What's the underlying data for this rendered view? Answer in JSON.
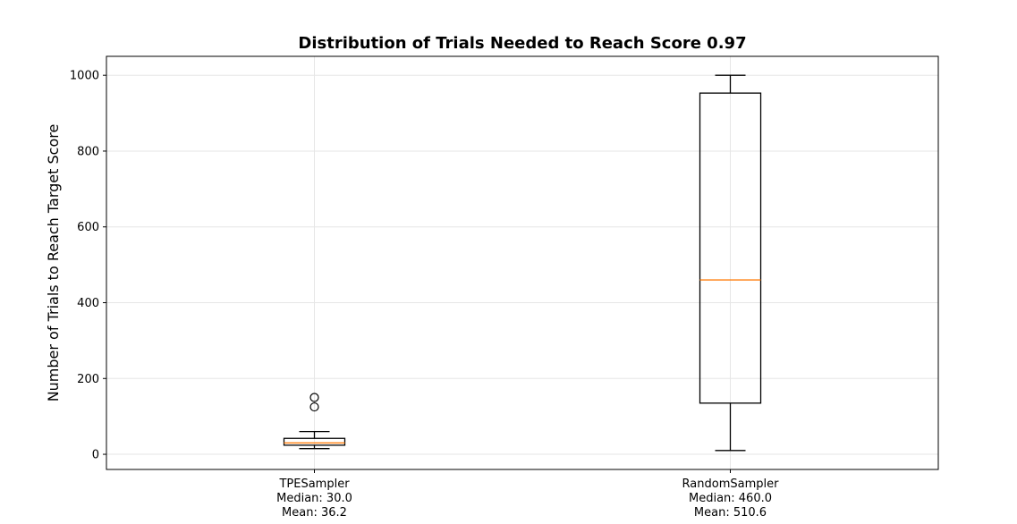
{
  "chart_data": {
    "type": "box",
    "title": "Distribution of Trials Needed to Reach Score 0.97",
    "xlabel": "",
    "ylabel": "Number of Trials to Reach Target Score",
    "ylim": [
      -40,
      1050
    ],
    "yticks": [
      0,
      200,
      400,
      600,
      800,
      1000
    ],
    "grid": true,
    "categories": [
      {
        "name": "TPESampler",
        "label_lines": [
          "TPESampler",
          "Median: 30.0",
          "Mean: 36.2"
        ]
      },
      {
        "name": "RandomSampler",
        "label_lines": [
          "RandomSampler",
          "Median: 460.0",
          "Mean: 510.6"
        ]
      }
    ],
    "boxes": [
      {
        "category": "TPESampler",
        "whisker_low": 15,
        "q1": 24,
        "median": 30,
        "q3": 42,
        "whisker_high": 60,
        "outliers": [
          125,
          150
        ]
      },
      {
        "category": "RandomSampler",
        "whisker_low": 10,
        "q1": 135,
        "median": 460,
        "q3": 953,
        "whisker_high": 1000,
        "outliers": []
      }
    ],
    "colors": {
      "box": "#000000",
      "median": "#ff7f0e",
      "grid": "#e6e6e6"
    }
  }
}
